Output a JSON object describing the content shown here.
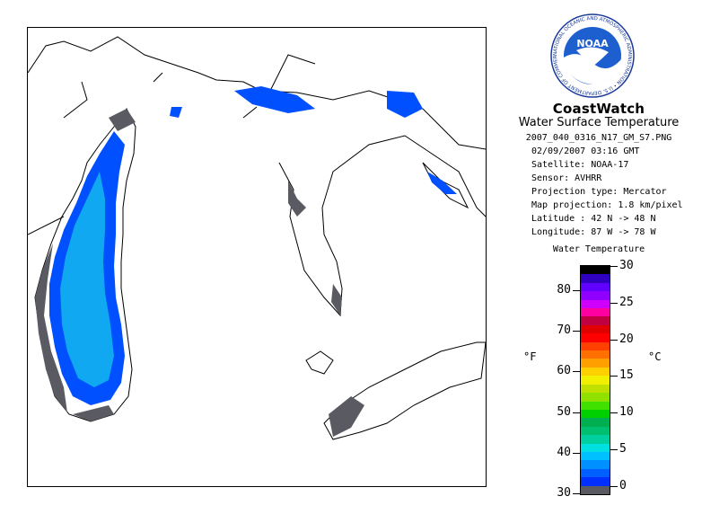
{
  "header": {
    "title": "CoastWatch",
    "subtitle": "Water Surface Temperature",
    "filename": "2007_040_0316_N17_GM_S7.PNG"
  },
  "logo": {
    "text": "NOAA",
    "ring_text": "NATIONAL OCEANIC AND ATMOSPHERIC ADMINISTRATION • U.S. DEPARTMENT OF COMMERCE"
  },
  "details": [
    "02/09/2007   03:16 GMT",
    "Satellite: NOAA-17",
    "Sensor: AVHRR",
    "Projection type:  Mercator",
    "Map projection: 1.8 km/pixel",
    "Latitude : 42 N -> 48 N",
    "Longitude: 87 W -> 78 W"
  ],
  "legend": {
    "title": "Water Temperature",
    "unit_f": "°F",
    "unit_c": "°C",
    "fahrenheit_ticks": [
      "30",
      "40",
      "50",
      "60",
      "70",
      "80"
    ],
    "celsius_ticks": [
      "0",
      "5",
      "10",
      "15",
      "20",
      "25",
      "30"
    ],
    "colors": [
      "#5a5a63",
      "#0030ff",
      "#0060ff",
      "#0090ff",
      "#00c0ff",
      "#00e0e0",
      "#00d0a0",
      "#00c070",
      "#00b050",
      "#00d000",
      "#40e000",
      "#90e000",
      "#c0e000",
      "#f0f000",
      "#ffd000",
      "#ffa000",
      "#ff7000",
      "#ff4000",
      "#ff0000",
      "#e00000",
      "#c00040",
      "#ff00a0",
      "#d000ff",
      "#9000ff",
      "#6000ff",
      "#3000c0",
      "#000000"
    ]
  },
  "colors": {
    "water_blue": "#0050ff",
    "water_cyan": "#10a8f0",
    "ice_gray": "#5a5a63"
  }
}
